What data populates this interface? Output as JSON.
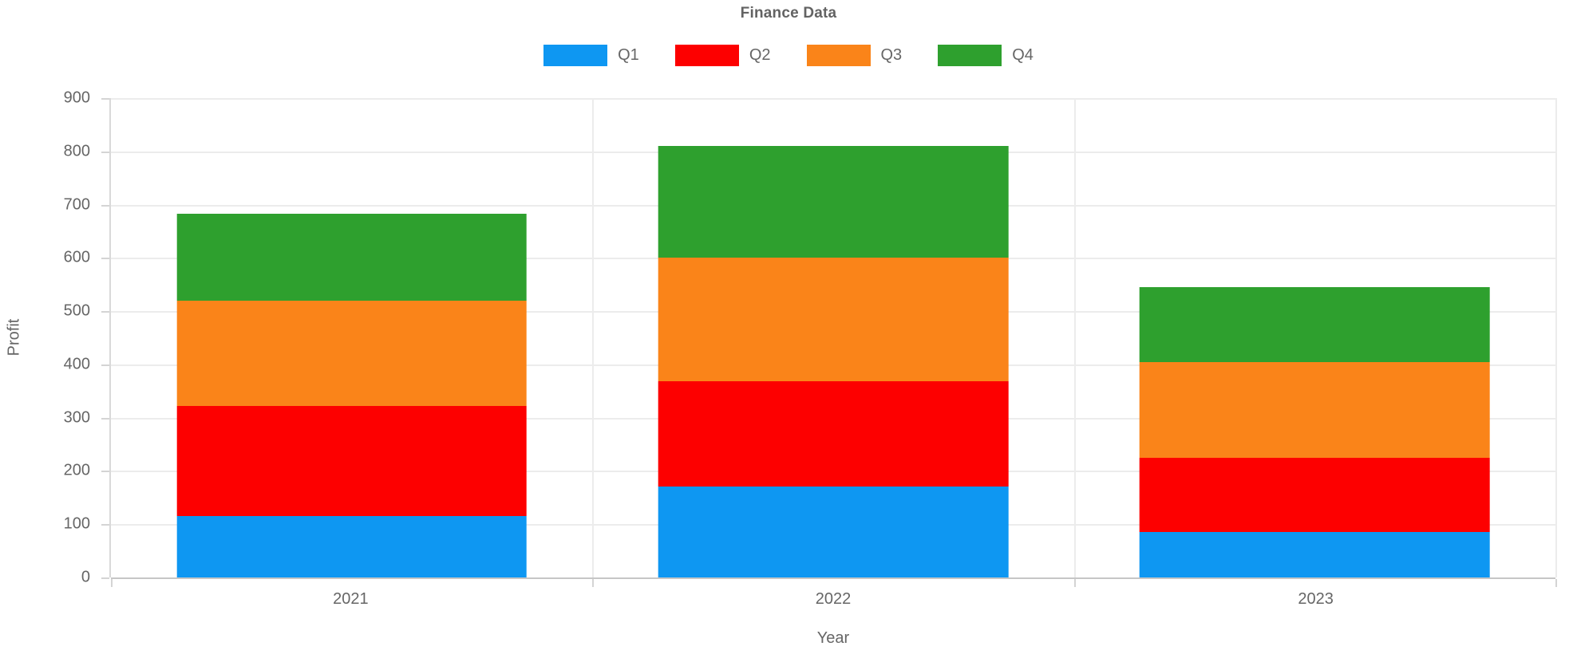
{
  "title": "Finance Data",
  "chart_data": {
    "type": "bar",
    "stacked": true,
    "title": "Finance Data",
    "xlabel": "Year",
    "ylabel": "Profit",
    "categories": [
      "2021",
      "2022",
      "2023"
    ],
    "series": [
      {
        "name": "Q1",
        "color": "#0E97F2",
        "values": [
          115,
          170,
          85
        ]
      },
      {
        "name": "Q2",
        "color": "#FD0000",
        "values": [
          207,
          198,
          140
        ]
      },
      {
        "name": "Q3",
        "color": "#FA8419",
        "values": [
          198,
          232,
          180
        ]
      },
      {
        "name": "Q4",
        "color": "#2EA02E",
        "values": [
          163,
          210,
          140
        ]
      }
    ],
    "totals": [
      683,
      810,
      545
    ],
    "ylim": [
      0,
      900
    ],
    "yticks": [
      0,
      100,
      200,
      300,
      400,
      500,
      600,
      700,
      800,
      900
    ],
    "grid": true,
    "legend_position": "top",
    "legend_labels": [
      "Q1",
      "Q2",
      "Q3",
      "Q4"
    ]
  }
}
